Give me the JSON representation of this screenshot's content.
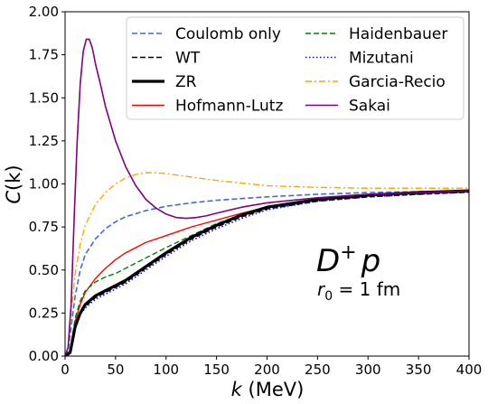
{
  "chart_data": {
    "type": "line",
    "xlabel_var": "k",
    "xlabel_unit": "(MeV)",
    "ylabel_var": "C",
    "ylabel_arg": "(k)",
    "xlim": [
      0,
      400
    ],
    "ylim": [
      0,
      2.0
    ],
    "xticks": [
      "0",
      "50",
      "100",
      "150",
      "200",
      "250",
      "300",
      "350",
      "400"
    ],
    "yticks": [
      "0.00",
      "0.25",
      "0.50",
      "0.75",
      "1.00",
      "1.25",
      "1.50",
      "1.75",
      "2.00"
    ],
    "grid": false,
    "legend_position": "top-right",
    "annotation": {
      "system_main": "D",
      "system_sup": "+",
      "system_tail": "p",
      "radius_var": "r",
      "radius_sub": "0",
      "radius_rest": " = 1 fm"
    },
    "series": [
      {
        "name": "Coulomb only",
        "color": "#4169e1",
        "dash": "dashed",
        "width": 1.6,
        "x": [
          0,
          3,
          6,
          10,
          15,
          20,
          30,
          40,
          50,
          60,
          80,
          100,
          125,
          150,
          200,
          250,
          300,
          350,
          400
        ],
        "y": [
          0,
          0.03,
          0.17,
          0.35,
          0.5,
          0.59,
          0.68,
          0.74,
          0.78,
          0.81,
          0.845,
          0.87,
          0.89,
          0.905,
          0.925,
          0.94,
          0.95,
          0.955,
          0.96
        ]
      },
      {
        "name": "WT",
        "color": "#000000",
        "dash": "dashed",
        "width": 1.6,
        "x": [
          0,
          5,
          10,
          15,
          20,
          30,
          40,
          50,
          60,
          70,
          80,
          90,
          100,
          125,
          150,
          175,
          200,
          250,
          300,
          350,
          400
        ],
        "y": [
          0,
          0.02,
          0.16,
          0.24,
          0.29,
          0.34,
          0.37,
          0.4,
          0.43,
          0.47,
          0.51,
          0.55,
          0.59,
          0.68,
          0.75,
          0.81,
          0.855,
          0.9,
          0.925,
          0.94,
          0.952
        ]
      },
      {
        "name": "ZR",
        "color": "#000000",
        "dash": "solid",
        "width": 3.2,
        "x": [
          0,
          5,
          10,
          15,
          20,
          30,
          40,
          50,
          60,
          70,
          80,
          90,
          100,
          125,
          150,
          175,
          200,
          250,
          300,
          350,
          400
        ],
        "y": [
          0,
          0.02,
          0.17,
          0.25,
          0.3,
          0.35,
          0.38,
          0.41,
          0.44,
          0.48,
          0.52,
          0.56,
          0.6,
          0.69,
          0.76,
          0.82,
          0.865,
          0.91,
          0.935,
          0.95,
          0.96
        ]
      },
      {
        "name": "Hofmann-Lutz",
        "color": "#ff0000",
        "dash": "solid",
        "width": 1.4,
        "x": [
          0,
          5,
          10,
          15,
          20,
          30,
          40,
          50,
          60,
          80,
          100,
          125,
          150,
          175,
          200,
          250,
          300,
          350,
          400
        ],
        "y": [
          0,
          0.03,
          0.2,
          0.3,
          0.37,
          0.45,
          0.51,
          0.56,
          0.6,
          0.66,
          0.7,
          0.75,
          0.79,
          0.83,
          0.865,
          0.91,
          0.935,
          0.95,
          0.958
        ]
      },
      {
        "name": "Haidenbauer",
        "color": "#008000",
        "dash": "dashed",
        "width": 1.4,
        "x": [
          0,
          5,
          10,
          15,
          20,
          30,
          40,
          50,
          60,
          70,
          80,
          90,
          100,
          125,
          150,
          175,
          200,
          250,
          300,
          350,
          400
        ],
        "y": [
          0,
          0.03,
          0.22,
          0.32,
          0.38,
          0.43,
          0.46,
          0.48,
          0.51,
          0.54,
          0.57,
          0.6,
          0.63,
          0.7,
          0.77,
          0.82,
          0.86,
          0.905,
          0.93,
          0.945,
          0.955
        ]
      },
      {
        "name": "Mizutani",
        "color": "#0000ff",
        "dash": "dotted",
        "width": 1.6,
        "x": [
          0,
          5,
          10,
          15,
          20,
          30,
          40,
          50,
          60,
          70,
          80,
          90,
          100,
          125,
          150,
          175,
          200,
          250,
          300,
          350,
          400
        ],
        "y": [
          0,
          0.02,
          0.16,
          0.24,
          0.28,
          0.33,
          0.36,
          0.39,
          0.42,
          0.46,
          0.5,
          0.54,
          0.58,
          0.67,
          0.74,
          0.8,
          0.85,
          0.9,
          0.925,
          0.94,
          0.952
        ]
      },
      {
        "name": "Garcia-Recio",
        "color": "#ffa500",
        "dash": "dashdot",
        "width": 1.4,
        "x": [
          0,
          3,
          6,
          10,
          15,
          20,
          30,
          40,
          50,
          60,
          70,
          80,
          90,
          100,
          125,
          150,
          175,
          200,
          250,
          300,
          350,
          400
        ],
        "y": [
          0,
          0.05,
          0.25,
          0.48,
          0.65,
          0.76,
          0.88,
          0.95,
          1.0,
          1.035,
          1.055,
          1.065,
          1.065,
          1.06,
          1.04,
          1.02,
          1.005,
          0.99,
          0.98,
          0.975,
          0.975,
          0.975
        ]
      },
      {
        "name": "Sakai",
        "color": "#800080",
        "dash": "solid",
        "width": 1.6,
        "x": [
          0,
          3,
          6,
          9,
          12,
          15,
          18,
          21,
          24,
          27,
          30,
          35,
          40,
          50,
          60,
          70,
          80,
          90,
          100,
          110,
          120,
          130,
          140,
          150,
          175,
          200,
          250,
          300,
          350,
          400
        ],
        "y": [
          0,
          0.05,
          0.3,
          0.8,
          1.25,
          1.58,
          1.77,
          1.84,
          1.84,
          1.79,
          1.7,
          1.58,
          1.45,
          1.25,
          1.1,
          0.99,
          0.91,
          0.86,
          0.825,
          0.805,
          0.8,
          0.805,
          0.815,
          0.83,
          0.865,
          0.89,
          0.92,
          0.94,
          0.95,
          0.96
        ]
      }
    ]
  }
}
